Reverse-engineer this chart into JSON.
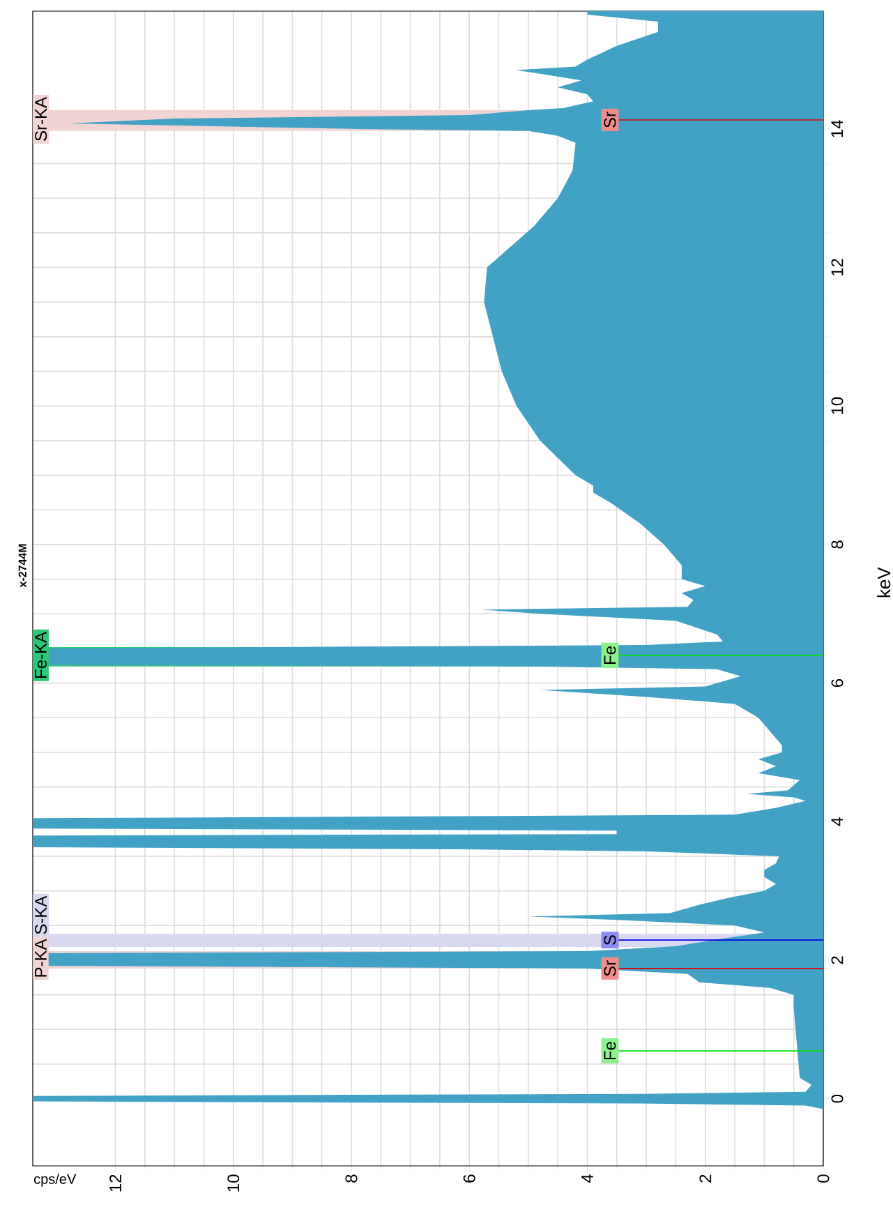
{
  "chart_data": {
    "type": "area",
    "orientation": "horizontal",
    "title": "x-2744M",
    "xlabel": "cps/eV",
    "ylabel": "keV",
    "color": "#42a2c6",
    "x": [
      -0.97,
      -0.15,
      -0.1,
      -0.07,
      -0.04,
      0.04,
      0.07,
      0.1,
      0.2,
      0.3,
      0.8,
      1.3,
      1.5,
      1.6,
      1.68,
      1.8,
      1.88,
      1.92,
      2.1,
      2.13,
      2.2,
      2.3,
      2.4,
      2.5,
      2.58,
      2.63,
      2.68,
      2.8,
      2.9,
      3.0,
      3.1,
      3.2,
      3.3,
      3.4,
      3.5,
      3.57,
      3.6,
      3.63,
      3.8,
      3.82,
      3.87,
      3.9,
      4.05,
      4.07,
      4.1,
      4.2,
      4.3,
      4.35,
      4.4,
      4.45,
      4.6,
      4.7,
      4.8,
      4.9,
      5.0,
      5.1,
      5.3,
      5.5,
      5.7,
      5.8,
      5.9,
      5.95,
      6.1,
      6.2,
      6.24,
      6.26,
      6.5,
      6.55,
      6.6,
      6.7,
      6.9,
      7.0,
      7.06,
      7.1,
      7.2,
      7.3,
      7.4,
      7.5,
      7.7,
      8.0,
      8.3,
      8.6,
      8.75,
      8.85,
      9.0,
      9.5,
      10.0,
      10.5,
      11.0,
      11.5,
      12.0,
      12.3,
      12.6,
      13.0,
      13.4,
      13.8,
      13.9,
      13.97,
      14.0,
      14.08,
      14.15,
      14.2,
      14.27,
      14.3,
      14.4,
      14.5,
      14.6,
      14.7,
      14.85,
      14.9,
      15.0,
      15.2,
      15.4,
      15.55,
      15.65,
      15.7
    ],
    "values": [
      0,
      0,
      0.3,
      3.1,
      13.4,
      13.4,
      3.1,
      0.3,
      0.2,
      0.4,
      0.45,
      0.5,
      0.5,
      0.9,
      2.1,
      2.3,
      4.0,
      13.4,
      13.4,
      4.0,
      2.5,
      1.8,
      1.0,
      1.5,
      3.5,
      5.0,
      2.6,
      2.1,
      1.6,
      1.0,
      0.8,
      1.0,
      1.0,
      0.8,
      0.75,
      3.0,
      6.1,
      13.4,
      13.4,
      3.5,
      3.5,
      13.4,
      13.4,
      8.0,
      1.5,
      0.8,
      0.3,
      0.5,
      1.3,
      0.6,
      0.4,
      1.1,
      0.8,
      1.1,
      0.7,
      0.7,
      0.9,
      1.1,
      1.5,
      3.0,
      4.8,
      2.0,
      1.4,
      1.8,
      5.0,
      13.4,
      13.4,
      3.0,
      1.7,
      1.8,
      2.5,
      4.8,
      5.8,
      2.3,
      2.2,
      2.4,
      2.0,
      2.4,
      2.4,
      2.7,
      3.1,
      3.6,
      3.9,
      3.9,
      4.2,
      4.8,
      5.2,
      5.45,
      5.6,
      5.75,
      5.7,
      5.3,
      4.9,
      4.5,
      4.25,
      4.2,
      4.5,
      5.0,
      8.0,
      12.8,
      11.0,
      6.0,
      5.0,
      4.4,
      3.9,
      4.0,
      4.5,
      4.1,
      5.2,
      4.2,
      4.0,
      3.5,
      2.8,
      2.8,
      4.0,
      4.0
    ],
    "xlim": [
      13.4,
      0
    ],
    "ylim": [
      -0.97,
      15.7
    ],
    "xticks": [
      0,
      2,
      4,
      6,
      8,
      10,
      12
    ],
    "yticks": [
      0,
      2,
      4,
      6,
      8,
      10,
      12,
      14
    ],
    "grid": true,
    "bands": [
      {
        "axis": "y",
        "from": 1.88,
        "to": 2.13,
        "label": "P-KA",
        "color": "#f2d4d4"
      },
      {
        "axis": "y",
        "from": 2.19,
        "to": 2.38,
        "label": "S-KA",
        "color": "#d8d8f0"
      },
      {
        "axis": "y",
        "from": 6.24,
        "to": 6.52,
        "label": "Fe-KA",
        "color": "#2bc878"
      },
      {
        "axis": "y",
        "from": 13.97,
        "to": 14.27,
        "label": "Sr-KA",
        "color": "#f2d4d4"
      }
    ],
    "ref_lines": [
      {
        "axis": "y",
        "value": 0.69,
        "label": "Fe",
        "color": "#00e000"
      },
      {
        "axis": "y",
        "value": 1.88,
        "label": "Sr",
        "color": "#e00000"
      },
      {
        "axis": "y",
        "value": 2.29,
        "label": "S",
        "color": "#0000e0"
      },
      {
        "axis": "y",
        "value": 6.4,
        "label": "Fe",
        "color": "#00e000"
      },
      {
        "axis": "y",
        "value": 14.13,
        "label": "Sr",
        "color": "#e00000"
      }
    ]
  }
}
